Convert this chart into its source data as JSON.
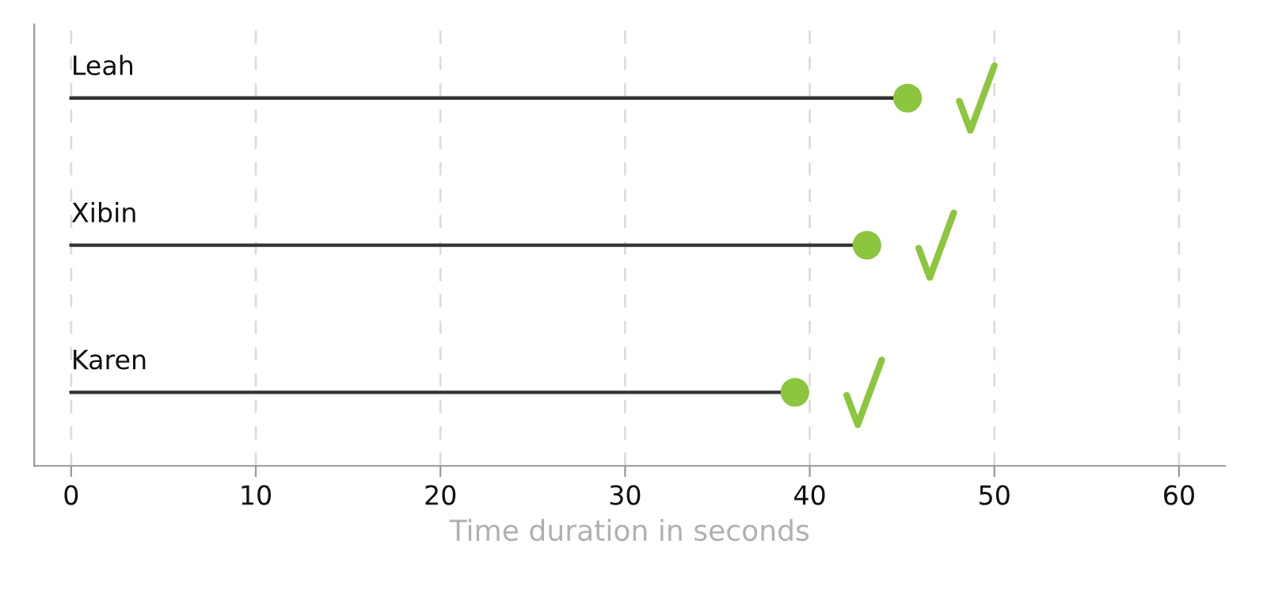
{
  "chart_data": {
    "type": "lollipop",
    "orientation": "horizontal",
    "xlabel": "Time duration in seconds",
    "categories": [
      "Leah",
      "Xibin",
      "Karen"
    ],
    "values": [
      45.3,
      43.1,
      39.2
    ],
    "color": "#8cc63f",
    "xlim": [
      -2,
      62.5
    ],
    "xticks": [
      0,
      10,
      20,
      30,
      40,
      50,
      60
    ],
    "grid": "x"
  }
}
